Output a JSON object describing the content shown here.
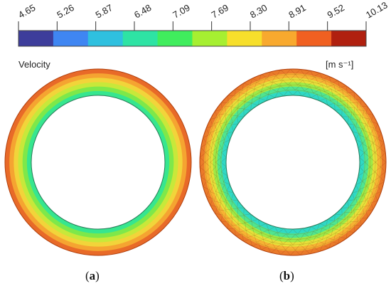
{
  "legend": {
    "title": "Velocity",
    "unit": "[m s⁻¹]",
    "ticks": [
      "4.65",
      "5.26",
      "5.87",
      "6.48",
      "7.09",
      "7.69",
      "8.30",
      "8.91",
      "9.52",
      "10.13"
    ],
    "colors": [
      "#3d3d9b",
      "#3f86f2",
      "#2fc0df",
      "#2ee3a4",
      "#40ed5d",
      "#a6ef31",
      "#f7df2b",
      "#f8a92e",
      "#f06021",
      "#b0200f"
    ]
  },
  "panels": [
    {
      "label": "a",
      "bands": [
        "#e86a28",
        "#f5a431",
        "#f2d43a",
        "#c8e83a",
        "#7ee84a",
        "#36e68f"
      ]
    },
    {
      "label": "b",
      "bands": [
        "#ea7a2a",
        "#f6b233",
        "#e6e03a",
        "#9ee947",
        "#4fe590",
        "#2fd9c5"
      ]
    }
  ],
  "captions": {
    "a": "a",
    "b": "b"
  }
}
